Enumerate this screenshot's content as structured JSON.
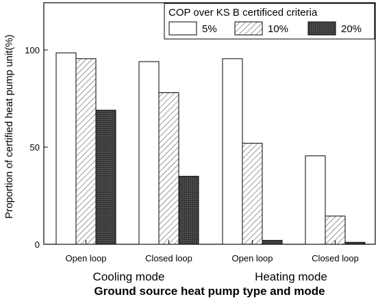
{
  "chart_data": {
    "type": "bar",
    "title": "",
    "xlabel": "Ground source heat pump type and mode",
    "ylabel": "Proportion of certified heat pump unit(%)",
    "ylim": [
      0,
      100
    ],
    "yticks": [
      "0",
      "50",
      "100"
    ],
    "categories": [
      "Open loop",
      "Closed loop",
      "Open loop",
      "Closed loop"
    ],
    "groups": [
      "Cooling mode",
      "Heating mode"
    ],
    "legend": {
      "title": "COP over KS B certificed criteria",
      "placement": "top-right"
    },
    "series": [
      {
        "name": "5%",
        "values": [
          98.5,
          94,
          95.5,
          45.5
        ],
        "fill": "#ffffff"
      },
      {
        "name": "10%",
        "values": [
          95.5,
          78,
          52,
          14.5
        ],
        "fill": "hatch"
      },
      {
        "name": "20%",
        "values": [
          69,
          35,
          2,
          1
        ],
        "fill": "#404040"
      }
    ]
  }
}
